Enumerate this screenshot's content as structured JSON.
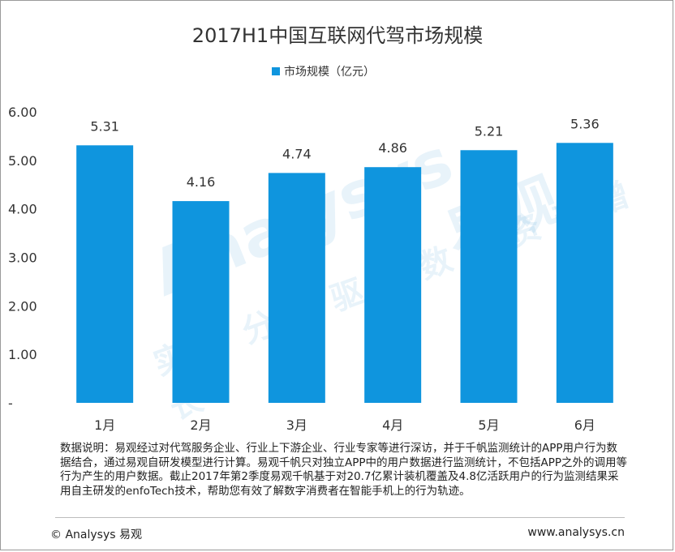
{
  "chart_data": {
    "type": "bar",
    "title": "2017H1中国互联网代驾市场规模",
    "categories": [
      "1月",
      "2月",
      "3月",
      "4月",
      "5月",
      "6月"
    ],
    "series": [
      {
        "name": "市场规模（亿元）",
        "values": [
          5.31,
          4.16,
          4.74,
          4.86,
          5.21,
          5.36
        ],
        "color": "#0f95de"
      }
    ],
    "data_labels": [
      "5.31",
      "4.16",
      "4.74",
      "4.86",
      "5.21",
      "5.36"
    ],
    "ylim": [
      0,
      6
    ],
    "yticks": [
      "-",
      "1.00",
      "2.00",
      "3.00",
      "4.00",
      "5.00",
      "6.00"
    ],
    "xlabel": "",
    "ylabel": "",
    "grid": false,
    "legend_position": "top"
  },
  "note": "数据说明：易观经过对代驾服务企业、行业上下游企业、行业专家等进行深访，并于千帆监测统计的APP用户行为数据结合，通过易观自研发模型进行计算。易观千帆只对独立APP中的用户数据进行监测统计，不包括APP之外的调用等行为产生的用户数据。截止2017年第2季度易观千帆基于对20.7亿累计装机覆盖及4.8亿活跃用户的行为监测结果采用自主研发的enfoTech技术，帮助您有效了解数字消费者在智能手机上的行为轨迹。",
  "footer": {
    "copyright": "© Analysys 易观",
    "site": "www.analysys.cn"
  },
  "watermark": {
    "brand": "Analysys",
    "cn": "易观",
    "slogan": "实时分析驱动数字资产增长"
  }
}
